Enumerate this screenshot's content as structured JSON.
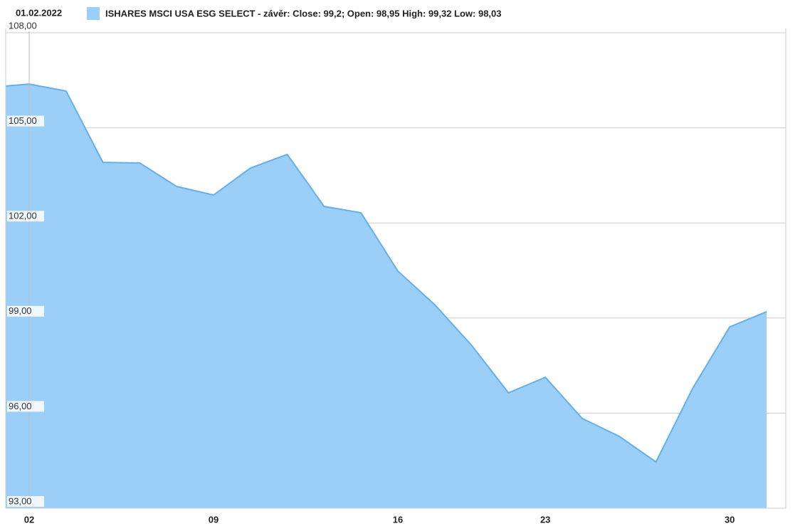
{
  "chart_data": {
    "type": "area",
    "date": "01.02.2022",
    "categories": [
      null,
      "02",
      null,
      null,
      null,
      null,
      "09",
      null,
      null,
      null,
      null,
      "16",
      null,
      null,
      null,
      "23",
      null,
      null,
      null,
      null,
      "30",
      null
    ],
    "series": [
      {
        "name": "ISHARES MSCI USA ESG SELECT - závěr: Close: 99,2; Open: 98,95 High: 99,32 Low: 98,03",
        "color": "#9ccff7",
        "line_color": "#64b0ea",
        "values": [
          106.32,
          106.38,
          106.16,
          103.91,
          103.89,
          103.15,
          102.88,
          103.73,
          104.16,
          102.52,
          102.32,
          100.48,
          99.42,
          98.14,
          96.64,
          97.13,
          95.83,
          95.27,
          94.46,
          96.79,
          98.72,
          99.2
        ]
      }
    ],
    "ylim": [
      93,
      108
    ],
    "yticks": [
      {
        "value": 93,
        "label": "93,00"
      },
      {
        "value": 96,
        "label": "96,00"
      },
      {
        "value": 99,
        "label": "99,00"
      },
      {
        "value": 102,
        "label": "102,00"
      },
      {
        "value": 105,
        "label": "105,00"
      },
      {
        "value": 108,
        "label": "108,00"
      }
    ],
    "grid": true
  }
}
